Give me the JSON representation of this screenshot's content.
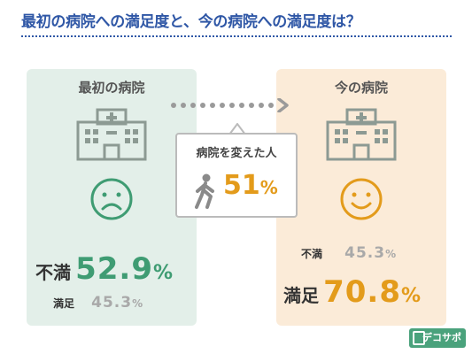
{
  "title": "最初の病院への満足度と、今の病院への満足度は？",
  "left_panel": {
    "title": "最初の病院",
    "face": "sad-face-icon",
    "primary": {
      "label": "不満",
      "value": "52.9",
      "unit": "%"
    },
    "secondary": {
      "label": "満足",
      "value": "45.3",
      "unit": "%"
    }
  },
  "right_panel": {
    "title": "今の病院",
    "face": "smile-face-icon",
    "secondary": {
      "label": "不満",
      "value": "45.3",
      "unit": "%"
    },
    "primary": {
      "label": "満足",
      "value": "70.8",
      "unit": "%"
    }
  },
  "callout": {
    "label": "病院を変えた人",
    "value": "51",
    "unit": "%"
  },
  "logo": {
    "text": "デコサポ"
  },
  "colors": {
    "title": "#2f57a6",
    "left_bg": "#e3efe9",
    "right_bg": "#fbebd8",
    "green": "#3f9c73",
    "orange": "#e39b1b",
    "muted": "#a9a9a9"
  }
}
